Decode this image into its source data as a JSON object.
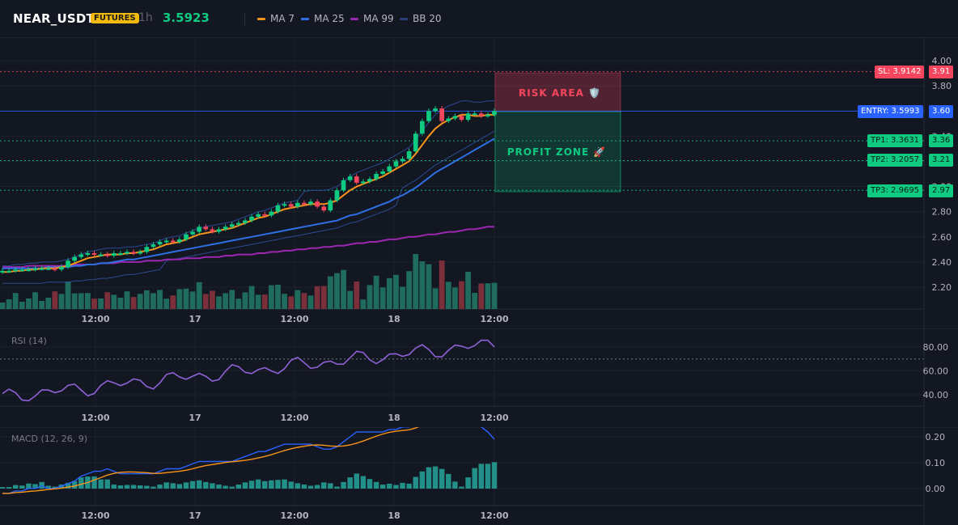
{
  "header": {
    "symbol": "NEAR_USDT",
    "badge": "FUTURES",
    "timeframe": "1h",
    "last_price": "3.5923",
    "indicators": [
      {
        "name": "MA 7",
        "color": "#f7931a"
      },
      {
        "name": "MA 25",
        "color": "#2f6fe4"
      },
      {
        "name": "MA 99",
        "color": "#9c27b0"
      },
      {
        "name": "BB 20",
        "color": "#2a3f7a"
      }
    ]
  },
  "colors": {
    "up": "#0ecb81",
    "down": "#f6465d",
    "vol_up": "#1f6b5c",
    "vol_down": "#7a2f3a",
    "risk": "#f6465d",
    "profit": "#0ecb81",
    "entry": "#2962ff"
  },
  "price_axis": {
    "ticks": [
      "4.00",
      "3.80",
      "3.60",
      "3.40",
      "3.20",
      "3.00",
      "2.80",
      "2.60",
      "2.40",
      "2.20"
    ],
    "min": 2.05,
    "max": 4.05
  },
  "time_axis": [
    "12:00",
    "17",
    "12:00",
    "18",
    "12:00"
  ],
  "trade": {
    "sl": {
      "label": "SL: 3.9142",
      "axis": "3.91",
      "value": 3.9142
    },
    "entry": {
      "label": "ENTRY: 3.5993",
      "axis": "3.60",
      "value": 3.5993
    },
    "tp1": {
      "label": "TP1: 3.3631",
      "axis": "3.36",
      "value": 3.3631
    },
    "tp2": {
      "label": "TP2: 3.2057",
      "axis": "3.21",
      "value": 3.2057
    },
    "tp3": {
      "label": "TP3: 2.9695",
      "axis": "2.97",
      "value": 2.9695
    },
    "risk_label": "RISK AREA 🛡️",
    "profit_label": "PROFIT ZONE 🚀"
  },
  "rsi": {
    "title": "RSI (14)",
    "ticks": [
      "80.00",
      "60.00",
      "40.00"
    ],
    "threshold": 70
  },
  "macd": {
    "title": "MACD (12, 26, 9)",
    "ticks": [
      "0.20",
      "0.10",
      "0.00"
    ]
  },
  "chart_data": {
    "type": "line",
    "title": "",
    "candles_close": [
      2.33,
      2.33,
      2.34,
      2.34,
      2.34,
      2.35,
      2.35,
      2.35,
      2.34,
      2.36,
      2.41,
      2.44,
      2.46,
      2.47,
      2.46,
      2.46,
      2.45,
      2.47,
      2.47,
      2.48,
      2.47,
      2.48,
      2.52,
      2.54,
      2.56,
      2.57,
      2.56,
      2.58,
      2.62,
      2.64,
      2.68,
      2.66,
      2.64,
      2.66,
      2.68,
      2.7,
      2.71,
      2.73,
      2.76,
      2.78,
      2.77,
      2.8,
      2.85,
      2.86,
      2.84,
      2.87,
      2.86,
      2.88,
      2.84,
      2.81,
      2.89,
      2.97,
      3.05,
      3.08,
      3.03,
      3.04,
      3.06,
      3.1,
      3.12,
      3.16,
      3.2,
      3.22,
      3.28,
      3.42,
      3.52,
      3.6,
      3.62,
      3.52,
      3.54,
      3.56,
      3.53,
      3.58,
      3.58,
      3.56,
      3.57,
      3.6
    ],
    "ma7": [
      2.32,
      2.32,
      2.33,
      2.33,
      2.34,
      2.34,
      2.35,
      2.35,
      2.35,
      2.36,
      2.37,
      2.39,
      2.41,
      2.43,
      2.44,
      2.45,
      2.46,
      2.46,
      2.46,
      2.47,
      2.47,
      2.48,
      2.49,
      2.5,
      2.52,
      2.54,
      2.55,
      2.56,
      2.58,
      2.6,
      2.62,
      2.63,
      2.64,
      2.65,
      2.66,
      2.67,
      2.69,
      2.71,
      2.73,
      2.75,
      2.76,
      2.78,
      2.8,
      2.82,
      2.83,
      2.84,
      2.85,
      2.86,
      2.86,
      2.86,
      2.87,
      2.89,
      2.93,
      2.97,
      3.0,
      3.02,
      3.04,
      3.06,
      3.08,
      3.11,
      3.14,
      3.17,
      3.2,
      3.26,
      3.33,
      3.4,
      3.46,
      3.5,
      3.53,
      3.55,
      3.57,
      3.57,
      3.56,
      3.56,
      3.57,
      3.57
    ],
    "ma25": [
      2.35,
      2.35,
      2.35,
      2.35,
      2.35,
      2.35,
      2.35,
      2.36,
      2.36,
      2.36,
      2.36,
      2.37,
      2.37,
      2.38,
      2.38,
      2.39,
      2.39,
      2.4,
      2.41,
      2.42,
      2.42,
      2.43,
      2.44,
      2.45,
      2.46,
      2.47,
      2.48,
      2.49,
      2.5,
      2.51,
      2.52,
      2.53,
      2.54,
      2.55,
      2.56,
      2.57,
      2.58,
      2.59,
      2.6,
      2.61,
      2.62,
      2.63,
      2.64,
      2.65,
      2.66,
      2.67,
      2.68,
      2.69,
      2.7,
      2.71,
      2.72,
      2.73,
      2.75,
      2.77,
      2.78,
      2.8,
      2.82,
      2.84,
      2.86,
      2.88,
      2.91,
      2.93,
      2.96,
      2.99,
      3.03,
      3.07,
      3.11,
      3.14,
      3.17,
      3.2,
      3.23,
      3.26,
      3.29,
      3.32,
      3.35,
      3.38
    ],
    "ma99": [
      2.36,
      2.36,
      2.36,
      2.36,
      2.37,
      2.37,
      2.37,
      2.37,
      2.37,
      2.37,
      2.37,
      2.38,
      2.38,
      2.38,
      2.38,
      2.39,
      2.39,
      2.39,
      2.4,
      2.4,
      2.4,
      2.4,
      2.41,
      2.41,
      2.41,
      2.42,
      2.42,
      2.42,
      2.43,
      2.43,
      2.43,
      2.44,
      2.44,
      2.44,
      2.45,
      2.45,
      2.46,
      2.46,
      2.46,
      2.47,
      2.47,
      2.48,
      2.48,
      2.49,
      2.49,
      2.5,
      2.5,
      2.51,
      2.51,
      2.52,
      2.52,
      2.53,
      2.53,
      2.54,
      2.55,
      2.55,
      2.56,
      2.56,
      2.57,
      2.58,
      2.58,
      2.59,
      2.6,
      2.6,
      2.61,
      2.62,
      2.62,
      2.63,
      2.64,
      2.64,
      2.65,
      2.66,
      2.66,
      2.67,
      2.68,
      2.68
    ]
  }
}
